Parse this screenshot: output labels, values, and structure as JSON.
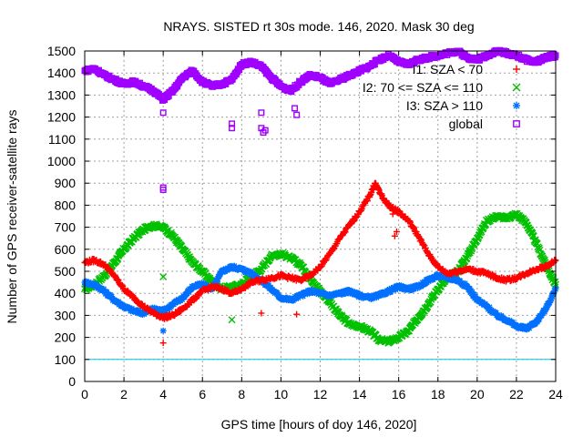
{
  "chart_data": {
    "type": "scatter",
    "title": "NRAYS. SISTED rt 30s mode. 146, 2020. Mask 30 deg",
    "xlabel": "GPS time [hours of doy 146, 2020]",
    "ylabel": "Number of GPS receiver-satellite rays",
    "xlim": [
      0,
      24
    ],
    "ylim": [
      0,
      1500
    ],
    "x_ticks": [
      "0",
      "2",
      "4",
      "6",
      "8",
      "10",
      "12",
      "14",
      "16",
      "18",
      "20",
      "22",
      "24"
    ],
    "y_ticks": [
      "0",
      "100",
      "200",
      "300",
      "400",
      "500",
      "600",
      "700",
      "800",
      "900",
      "1000",
      "1100",
      "1200",
      "1300",
      "1400",
      "1500"
    ],
    "grid": true,
    "legend_position": "top-right",
    "reference_line": {
      "y": 100,
      "color": "#00c8e0"
    },
    "series": [
      {
        "name": "I1: SZA < 70",
        "marker": "+",
        "color": "#ff0000",
        "x": [
          0,
          0.5,
          1,
          1.5,
          2,
          2.5,
          3,
          3.5,
          4,
          4.5,
          5,
          5.5,
          6,
          6.5,
          7,
          7.5,
          8,
          8.5,
          9,
          9.5,
          10,
          10.5,
          11,
          11.5,
          12,
          12.5,
          13,
          13.5,
          14,
          14.5,
          14.8,
          15.2,
          15.6,
          16,
          16.5,
          17,
          17.5,
          18,
          18.5,
          19,
          19.5,
          20,
          20.5,
          21,
          21.5,
          22,
          22.5,
          23,
          23.5,
          24
        ],
        "y": [
          540,
          550,
          530,
          480,
          420,
          380,
          340,
          310,
          290,
          300,
          330,
          370,
          410,
          430,
          420,
          400,
          420,
          450,
          460,
          470,
          480,
          470,
          460,
          480,
          520,
          580,
          650,
          710,
          770,
          840,
          900,
          830,
          790,
          770,
          730,
          660,
          580,
          520,
          490,
          500,
          510,
          500,
          490,
          470,
          460,
          470,
          490,
          510,
          520,
          550
        ]
      },
      {
        "name": "I2: 70 <= SZA <= 110",
        "marker": "x",
        "color": "#00c000",
        "x": [
          0,
          0.5,
          1,
          1.5,
          2,
          2.5,
          3,
          3.5,
          4,
          4.5,
          5,
          5.5,
          6,
          6.5,
          7,
          7.5,
          8,
          8.5,
          9,
          9.5,
          10,
          10.5,
          11,
          11.5,
          12,
          12.5,
          13,
          13.5,
          14,
          14.5,
          15,
          15.5,
          16,
          16.5,
          17,
          17.5,
          18,
          18.5,
          19,
          19.5,
          20,
          20.5,
          21,
          21.5,
          22,
          22.5,
          23,
          23.5,
          24
        ],
        "y": [
          420,
          440,
          480,
          540,
          600,
          650,
          690,
          710,
          700,
          660,
          600,
          540,
          500,
          450,
          420,
          430,
          440,
          480,
          510,
          570,
          580,
          560,
          530,
          470,
          410,
          360,
          300,
          260,
          250,
          230,
          190,
          180,
          200,
          230,
          290,
          350,
          420,
          470,
          500,
          570,
          650,
          730,
          750,
          740,
          760,
          720,
          630,
          530,
          440
        ]
      },
      {
        "name": "I3: SZA > 110",
        "marker": "*",
        "color": "#0070ff",
        "x": [
          0,
          0.5,
          1,
          1.5,
          2,
          2.5,
          3,
          3.5,
          4,
          4.5,
          5,
          5.5,
          6,
          6.5,
          7,
          7.5,
          8,
          8.5,
          9,
          9.5,
          10,
          10.5,
          11,
          11.5,
          12,
          12.5,
          13,
          13.5,
          14,
          14.5,
          15,
          15.5,
          16,
          16.5,
          17,
          17.5,
          18,
          18.5,
          19,
          19.5,
          20,
          20.5,
          21,
          21.5,
          22,
          22.5,
          23,
          23.5,
          24
        ],
        "y": [
          450,
          440,
          410,
          370,
          340,
          320,
          310,
          330,
          320,
          350,
          380,
          430,
          440,
          420,
          500,
          520,
          510,
          490,
          460,
          420,
          380,
          370,
          390,
          410,
          400,
          390,
          400,
          410,
          390,
          380,
          390,
          410,
          430,
          420,
          430,
          460,
          480,
          470,
          460,
          430,
          370,
          340,
          300,
          280,
          250,
          240,
          270,
          330,
          420
        ]
      },
      {
        "name": "global",
        "marker": "square",
        "color": "#a000ff",
        "x": [
          0,
          0.5,
          1,
          1.5,
          2,
          2.5,
          3,
          3.5,
          4,
          4.5,
          5,
          5.5,
          6,
          6.5,
          7,
          7.5,
          8,
          8.5,
          9,
          9.5,
          10,
          10.5,
          11,
          11.5,
          12,
          12.5,
          13,
          13.5,
          14,
          14.5,
          15,
          15.5,
          16,
          16.5,
          17,
          17.5,
          18,
          18.5,
          19,
          19.5,
          20,
          20.5,
          21,
          21.5,
          22,
          22.5,
          23,
          23.5,
          24
        ],
        "y": [
          1410,
          1420,
          1390,
          1370,
          1350,
          1360,
          1340,
          1320,
          1280,
          1320,
          1380,
          1410,
          1360,
          1340,
          1350,
          1370,
          1440,
          1450,
          1430,
          1380,
          1340,
          1320,
          1360,
          1390,
          1380,
          1350,
          1370,
          1390,
          1410,
          1430,
          1460,
          1480,
          1450,
          1440,
          1460,
          1470,
          1480,
          1490,
          1500,
          1470,
          1460,
          1480,
          1500,
          1490,
          1480,
          1460,
          1450,
          1470,
          1480
        ]
      }
    ],
    "outliers": [
      {
        "series": "I1: SZA < 70",
        "x": [
          4,
          9,
          10.8,
          15.8,
          15.9,
          15.7
        ],
        "y": [
          175,
          310,
          305,
          660,
          680,
          760
        ]
      },
      {
        "series": "I2: 70 <= SZA <= 110",
        "x": [
          4,
          7.5
        ],
        "y": [
          475,
          280
        ]
      },
      {
        "series": "I3: SZA > 110",
        "x": [
          4
        ],
        "y": [
          230
        ]
      },
      {
        "series": "global",
        "x": [
          4,
          4,
          4,
          7.5,
          7.5,
          9,
          9,
          9.1,
          9.2,
          10.7,
          10.8
        ],
        "y": [
          1220,
          880,
          870,
          1170,
          1150,
          1220,
          1150,
          1130,
          1140,
          1240,
          1210
        ]
      }
    ]
  }
}
